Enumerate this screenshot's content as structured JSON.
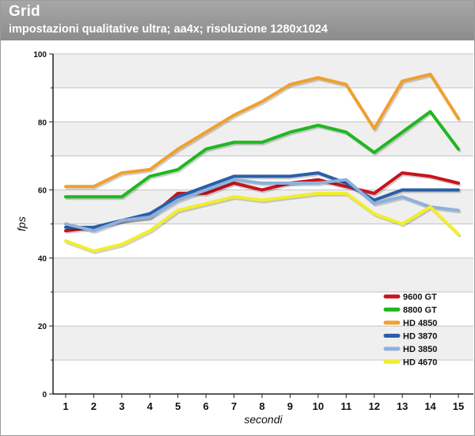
{
  "title": "Grid",
  "subtitle": "impostazioni qualitative ultra; aa4x; risoluzione 1280x1024",
  "chart_data": {
    "type": "line",
    "title": "Grid",
    "subtitle": "impostazioni qualitative ultra; aa4x; risoluzione 1280x1024",
    "xlabel": "secondi",
    "ylabel": "fps",
    "x": [
      1,
      2,
      3,
      4,
      5,
      6,
      7,
      8,
      9,
      10,
      11,
      12,
      13,
      14,
      15
    ],
    "ylim": [
      0,
      100
    ],
    "yticks": [
      0,
      20,
      40,
      60,
      80,
      100
    ],
    "grid": true,
    "legend_position": "bottom-right",
    "series": [
      {
        "name": "9600 GT",
        "color": "#c8141e",
        "values": [
          48,
          49,
          51,
          52,
          59,
          59,
          62,
          60,
          62,
          63,
          61,
          59,
          65,
          64,
          62
        ]
      },
      {
        "name": "8800 GT",
        "color": "#1fb81f",
        "values": [
          58,
          58,
          58,
          64,
          66,
          72,
          74,
          74,
          77,
          79,
          77,
          71,
          77,
          83,
          72
        ]
      },
      {
        "name": "HD 4850",
        "color": "#f0a030",
        "values": [
          61,
          61,
          65,
          66,
          72,
          77,
          82,
          86,
          91,
          93,
          91,
          78,
          92,
          94,
          81
        ]
      },
      {
        "name": "HD 3870",
        "color": "#2a5fa8",
        "values": [
          49,
          49,
          51,
          53,
          58,
          61,
          64,
          64,
          64,
          65,
          62,
          57,
          60,
          60,
          60
        ]
      },
      {
        "name": "HD 3850",
        "color": "#8fb0dc",
        "values": [
          50,
          48,
          51,
          52,
          57,
          60,
          63,
          62,
          62,
          62,
          63,
          56,
          58,
          55,
          54
        ]
      },
      {
        "name": "HD 4670",
        "color": "#f2ee2a",
        "values": [
          45,
          42,
          44,
          48,
          54,
          56,
          58,
          57,
          58,
          59,
          59,
          53,
          50,
          55,
          47
        ]
      }
    ]
  }
}
